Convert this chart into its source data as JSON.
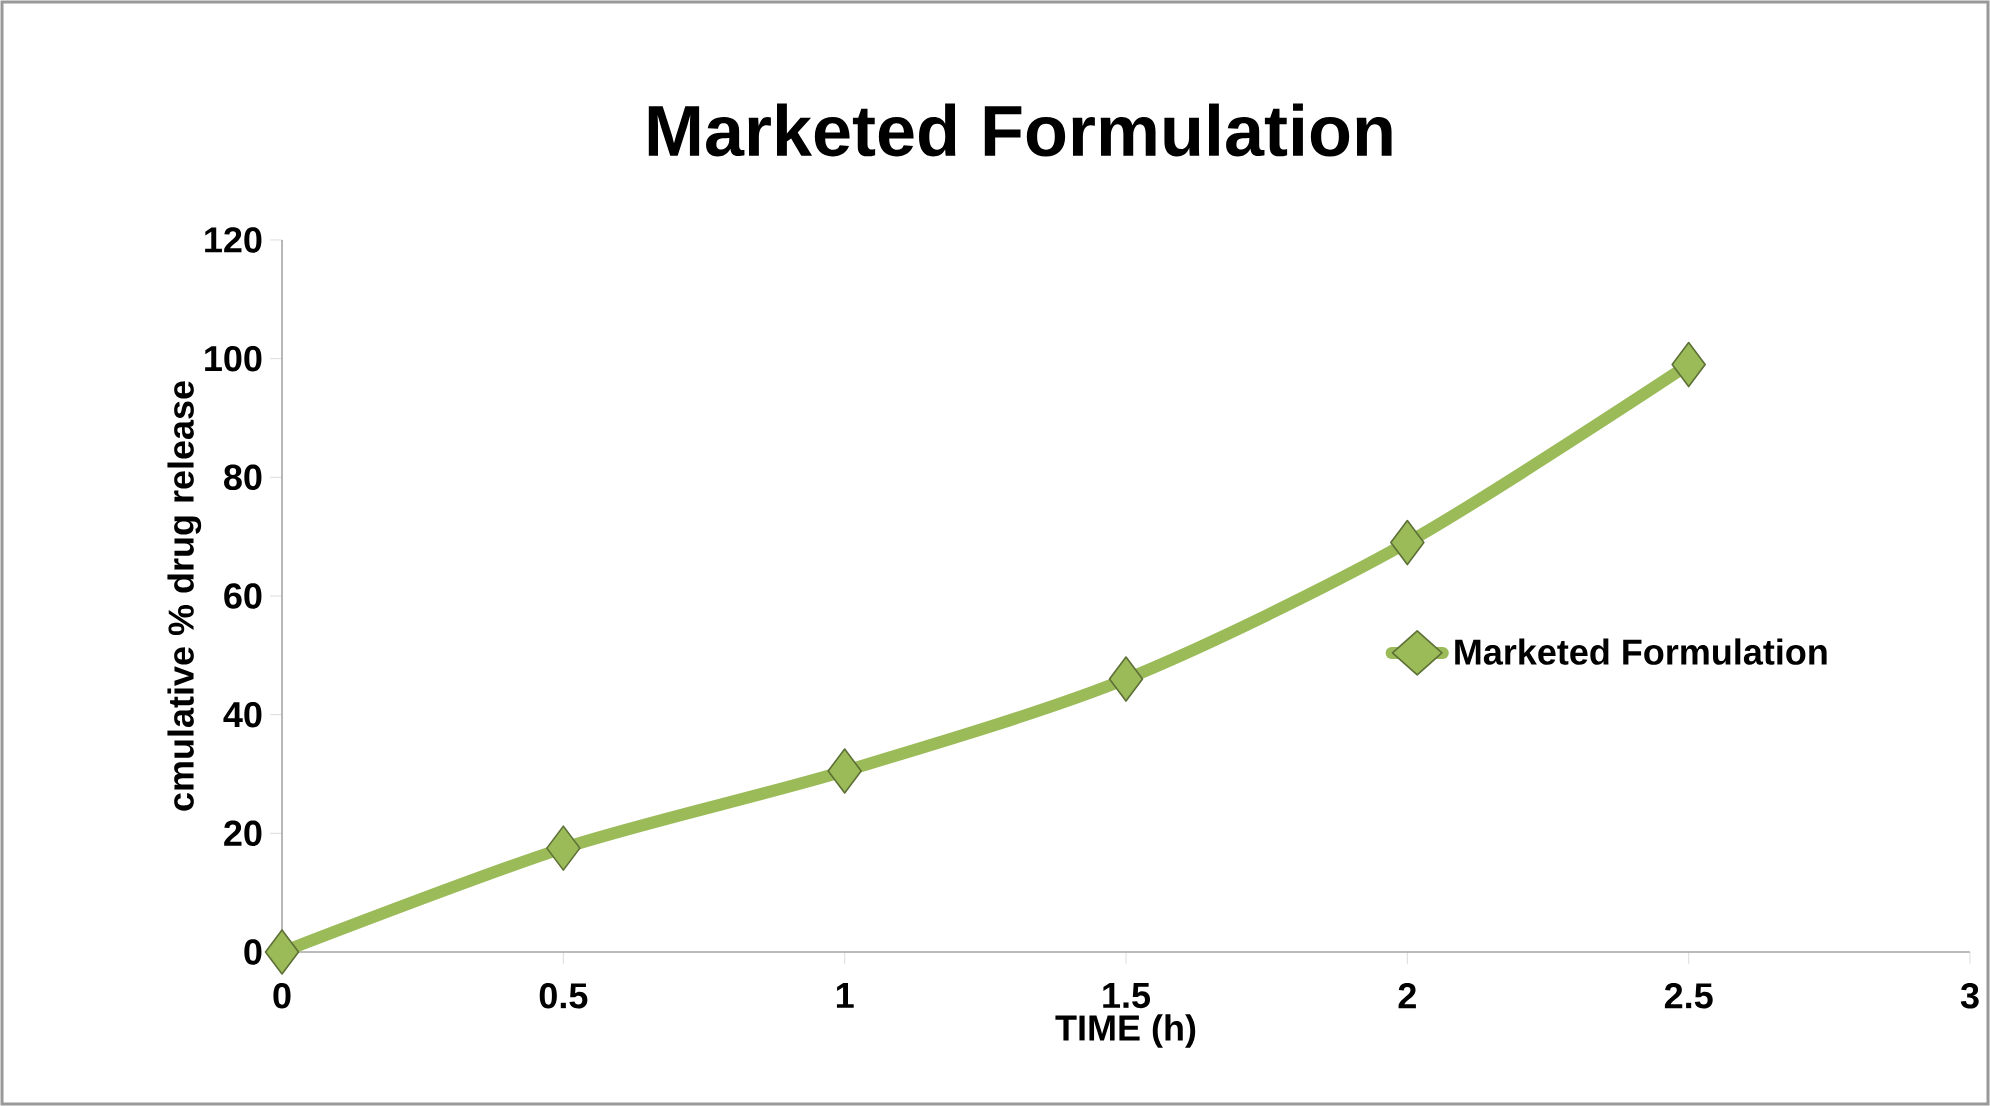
{
  "chart_data": {
    "type": "line",
    "title": "Marketed Formulation",
    "xlabel": "TIME (h)",
    "ylabel": "cmulative % drug release",
    "x": [
      0,
      0.5,
      1,
      1.5,
      2,
      2.5
    ],
    "series": [
      {
        "name": "Marketed Formulation",
        "color": "#9bbb59",
        "values": [
          0,
          17.5,
          30.5,
          46,
          69,
          99
        ]
      }
    ],
    "xlim": [
      0,
      3
    ],
    "ylim": [
      0,
      120
    ],
    "xticks": [
      0,
      0.5,
      1,
      1.5,
      2,
      2.5,
      3
    ],
    "yticks": [
      0,
      20,
      40,
      60,
      80,
      100,
      120
    ],
    "grid": false,
    "legend": "right",
    "marker": "diamond",
    "line_style": "solid"
  }
}
